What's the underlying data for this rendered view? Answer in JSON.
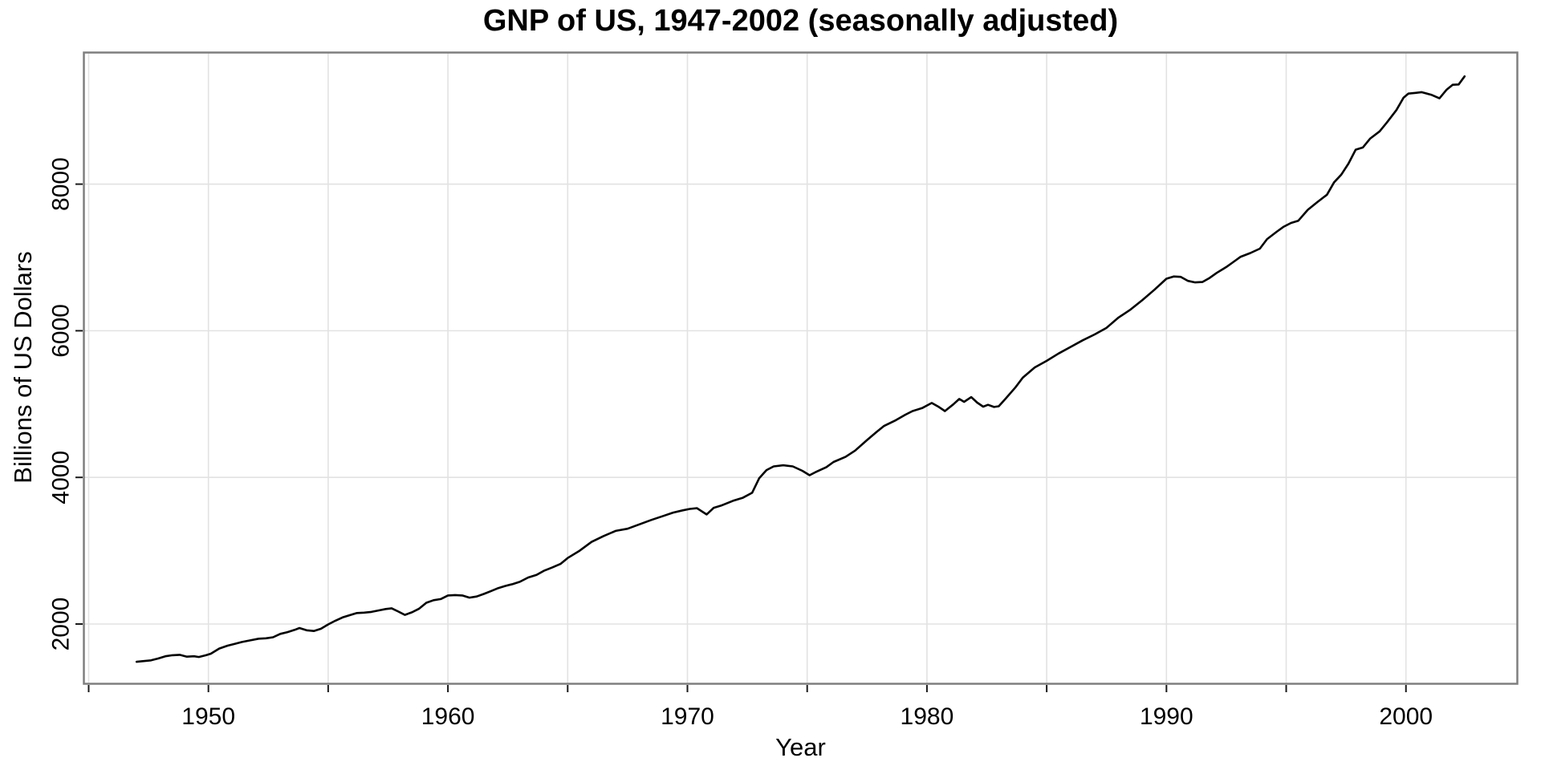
{
  "chart_data": {
    "type": "line",
    "title": "GNP of US, 1947-2002 (seasonally adjusted)",
    "xlabel": "Year",
    "ylabel": "Billions of US Dollars",
    "x_domain": [
      1944.8,
      2004.65
    ],
    "y_domain": [
      1185,
      9795
    ],
    "x_grid_years": [
      1945,
      1950,
      1955,
      1960,
      1965,
      1970,
      1975,
      1980,
      1985,
      1990,
      1995,
      2000
    ],
    "x_labeled_ticks": [
      1950,
      1960,
      1970,
      1980,
      1990,
      2000
    ],
    "x_tick_labels": [
      "1950",
      "1960",
      "1970",
      "1980",
      "1990",
      "2000"
    ],
    "y_ticks": [
      2000,
      4000,
      6000,
      8000
    ],
    "y_tick_labels": [
      "2000",
      "4000",
      "6000",
      "8000"
    ],
    "grid": {
      "vertical": "every 5 years",
      "horizontal": "every 2000 units",
      "minor_horizontal": "none"
    },
    "legend": "none",
    "style": {
      "background": "#ffffff",
      "line_color": "#000000",
      "line_width": 2.6,
      "panel_border_color": "#7f7f7f",
      "panel_border_width": 2.5,
      "grid_color": "#e2e2e2",
      "grid_width": 1.6,
      "tick_color": "#1a1a1a",
      "tick_length": 9,
      "text_color": "#000000"
    },
    "series": [
      {
        "name": "GNP",
        "color": "#000000",
        "points": [
          [
            1947.0,
            1485
          ],
          [
            1947.3,
            1495
          ],
          [
            1947.6,
            1505
          ],
          [
            1947.9,
            1530
          ],
          [
            1948.2,
            1560
          ],
          [
            1948.5,
            1575
          ],
          [
            1948.8,
            1580
          ],
          [
            1949.1,
            1555
          ],
          [
            1949.4,
            1560
          ],
          [
            1949.6,
            1550
          ],
          [
            1949.9,
            1575
          ],
          [
            1950.1,
            1595
          ],
          [
            1950.45,
            1665
          ],
          [
            1950.8,
            1705
          ],
          [
            1951.1,
            1730
          ],
          [
            1951.4,
            1755
          ],
          [
            1951.7,
            1775
          ],
          [
            1952.1,
            1800
          ],
          [
            1952.4,
            1805
          ],
          [
            1952.7,
            1820
          ],
          [
            1953.0,
            1865
          ],
          [
            1953.3,
            1890
          ],
          [
            1953.6,
            1920
          ],
          [
            1953.8,
            1945
          ],
          [
            1954.1,
            1915
          ],
          [
            1954.4,
            1905
          ],
          [
            1954.7,
            1935
          ],
          [
            1955.0,
            1995
          ],
          [
            1955.3,
            2045
          ],
          [
            1955.6,
            2090
          ],
          [
            1955.9,
            2120
          ],
          [
            1956.2,
            2150
          ],
          [
            1956.5,
            2155
          ],
          [
            1956.8,
            2165
          ],
          [
            1957.1,
            2185
          ],
          [
            1957.4,
            2205
          ],
          [
            1957.65,
            2215
          ],
          [
            1957.9,
            2175
          ],
          [
            1958.2,
            2125
          ],
          [
            1958.5,
            2160
          ],
          [
            1958.8,
            2210
          ],
          [
            1959.1,
            2290
          ],
          [
            1959.4,
            2325
          ],
          [
            1959.7,
            2340
          ],
          [
            1960.0,
            2390
          ],
          [
            1960.3,
            2395
          ],
          [
            1960.6,
            2390
          ],
          [
            1960.9,
            2360
          ],
          [
            1961.2,
            2375
          ],
          [
            1961.5,
            2410
          ],
          [
            1961.8,
            2450
          ],
          [
            1962.1,
            2490
          ],
          [
            1962.4,
            2520
          ],
          [
            1962.7,
            2545
          ],
          [
            1963.0,
            2575
          ],
          [
            1963.35,
            2635
          ],
          [
            1963.7,
            2670
          ],
          [
            1964.0,
            2725
          ],
          [
            1964.35,
            2770
          ],
          [
            1964.7,
            2820
          ],
          [
            1965.0,
            2900
          ],
          [
            1965.5,
            3000
          ],
          [
            1966.0,
            3120
          ],
          [
            1966.5,
            3200
          ],
          [
            1967.0,
            3270
          ],
          [
            1967.5,
            3300
          ],
          [
            1968.0,
            3360
          ],
          [
            1968.5,
            3420
          ],
          [
            1969.0,
            3475
          ],
          [
            1969.4,
            3520
          ],
          [
            1969.8,
            3550
          ],
          [
            1970.1,
            3570
          ],
          [
            1970.4,
            3580
          ],
          [
            1970.8,
            3495
          ],
          [
            1971.1,
            3585
          ],
          [
            1971.4,
            3615
          ],
          [
            1971.9,
            3680
          ],
          [
            1972.3,
            3720
          ],
          [
            1972.7,
            3790
          ],
          [
            1973.0,
            3990
          ],
          [
            1973.3,
            4100
          ],
          [
            1973.6,
            4150
          ],
          [
            1974.0,
            4165
          ],
          [
            1974.4,
            4150
          ],
          [
            1974.8,
            4090
          ],
          [
            1975.1,
            4030
          ],
          [
            1975.4,
            4080
          ],
          [
            1975.8,
            4140
          ],
          [
            1976.1,
            4210
          ],
          [
            1976.6,
            4280
          ],
          [
            1977.0,
            4365
          ],
          [
            1977.5,
            4510
          ],
          [
            1977.9,
            4620
          ],
          [
            1978.2,
            4700
          ],
          [
            1978.7,
            4780
          ],
          [
            1979.1,
            4855
          ],
          [
            1979.4,
            4905
          ],
          [
            1979.8,
            4945
          ],
          [
            1980.2,
            5015
          ],
          [
            1980.5,
            4960
          ],
          [
            1980.75,
            4905
          ],
          [
            1981.1,
            4995
          ],
          [
            1981.35,
            5070
          ],
          [
            1981.55,
            5030
          ],
          [
            1981.85,
            5095
          ],
          [
            1982.1,
            5020
          ],
          [
            1982.35,
            4965
          ],
          [
            1982.55,
            4990
          ],
          [
            1982.8,
            4960
          ],
          [
            1983.0,
            4970
          ],
          [
            1983.3,
            5080
          ],
          [
            1983.7,
            5230
          ],
          [
            1984.0,
            5360
          ],
          [
            1984.5,
            5500
          ],
          [
            1985.0,
            5590
          ],
          [
            1985.5,
            5690
          ],
          [
            1986.0,
            5780
          ],
          [
            1986.5,
            5870
          ],
          [
            1987.0,
            5950
          ],
          [
            1987.5,
            6040
          ],
          [
            1988.0,
            6180
          ],
          [
            1988.5,
            6290
          ],
          [
            1989.0,
            6420
          ],
          [
            1989.5,
            6560
          ],
          [
            1990.0,
            6710
          ],
          [
            1990.3,
            6740
          ],
          [
            1990.6,
            6735
          ],
          [
            1990.9,
            6680
          ],
          [
            1991.2,
            6660
          ],
          [
            1991.5,
            6665
          ],
          [
            1991.8,
            6720
          ],
          [
            1992.1,
            6790
          ],
          [
            1992.5,
            6870
          ],
          [
            1992.8,
            6940
          ],
          [
            1993.1,
            7010
          ],
          [
            1993.5,
            7060
          ],
          [
            1993.9,
            7120
          ],
          [
            1994.2,
            7250
          ],
          [
            1994.6,
            7350
          ],
          [
            1994.9,
            7420
          ],
          [
            1995.2,
            7470
          ],
          [
            1995.5,
            7500
          ],
          [
            1995.9,
            7650
          ],
          [
            1996.3,
            7755
          ],
          [
            1996.7,
            7855
          ],
          [
            1997.0,
            8025
          ],
          [
            1997.3,
            8130
          ],
          [
            1997.6,
            8280
          ],
          [
            1997.9,
            8470
          ],
          [
            1998.2,
            8500
          ],
          [
            1998.5,
            8620
          ],
          [
            1998.9,
            8720
          ],
          [
            1999.2,
            8840
          ],
          [
            1999.6,
            9010
          ],
          [
            1999.9,
            9180
          ],
          [
            2000.1,
            9235
          ],
          [
            2000.4,
            9245
          ],
          [
            2000.65,
            9255
          ],
          [
            2001.05,
            9220
          ],
          [
            2001.4,
            9170
          ],
          [
            2001.7,
            9290
          ],
          [
            2001.95,
            9355
          ],
          [
            2002.2,
            9360
          ],
          [
            2002.45,
            9470
          ]
        ]
      }
    ]
  }
}
